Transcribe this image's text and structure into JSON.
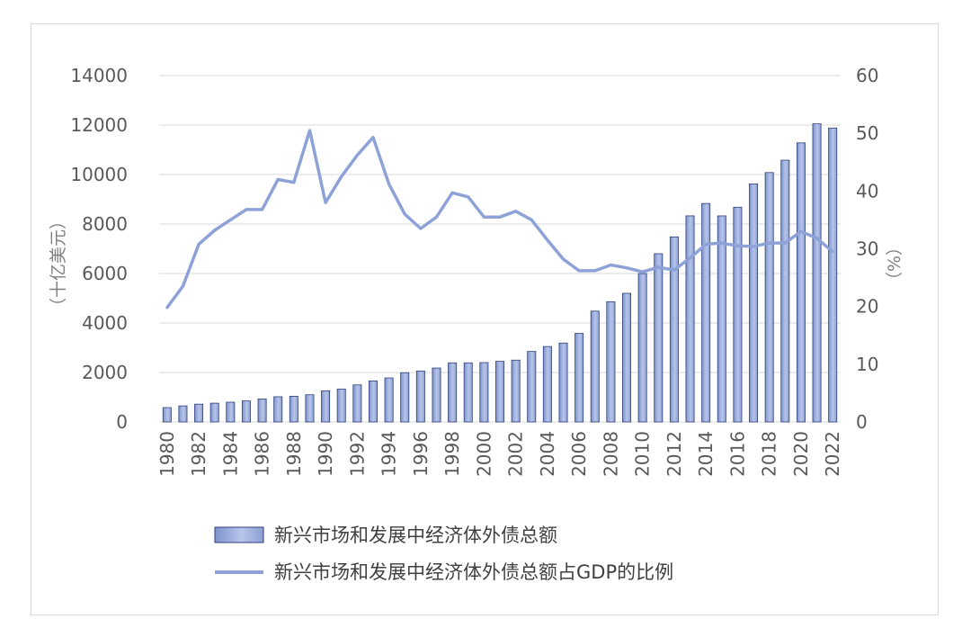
{
  "chart_data": {
    "type": "bar+line",
    "title": "",
    "x": [
      1980,
      1981,
      1982,
      1983,
      1984,
      1985,
      1986,
      1987,
      1988,
      1989,
      1990,
      1991,
      1992,
      1993,
      1994,
      1995,
      1996,
      1997,
      1998,
      1999,
      2000,
      2001,
      2002,
      2003,
      2004,
      2005,
      2006,
      2007,
      2008,
      2009,
      2010,
      2011,
      2012,
      2013,
      2014,
      2015,
      2016,
      2017,
      2018,
      2019,
      2020,
      2021,
      2022
    ],
    "x_tick_labels": [
      "1980",
      "1982",
      "1984",
      "1986",
      "1988",
      "1990",
      "1992",
      "1994",
      "1996",
      "1998",
      "2000",
      "2002",
      "2004",
      "2006",
      "2008",
      "2010",
      "2012",
      "2014",
      "2016",
      "2018",
      "2020",
      "2022"
    ],
    "left_axis": {
      "label": "（十亿美元）",
      "ylim": [
        0,
        14000
      ],
      "ticks": [
        "0",
        "2000",
        "4000",
        "6000",
        "8000",
        "10000",
        "12000",
        "14000"
      ]
    },
    "right_axis": {
      "label": "（%）",
      "ylim": [
        0,
        60
      ],
      "ticks": [
        "0",
        "10",
        "20",
        "30",
        "40",
        "50",
        "60"
      ]
    },
    "grid": true,
    "legend_position": "bottom",
    "series": [
      {
        "name": "新兴市场和发展中经济体外债总额",
        "type": "bar",
        "axis": "left",
        "values": [
          580,
          650,
          720,
          760,
          800,
          850,
          930,
          1020,
          1040,
          1100,
          1260,
          1330,
          1500,
          1660,
          1780,
          1990,
          2060,
          2180,
          2390,
          2390,
          2400,
          2450,
          2500,
          2850,
          3050,
          3190,
          3580,
          4480,
          4860,
          5200,
          6000,
          6800,
          7480,
          8330,
          8830,
          8330,
          8680,
          9620,
          10080,
          10580,
          11280,
          12050,
          11880
        ]
      },
      {
        "name": "新兴市场和发展中经济体外债总额占GDP的比例",
        "type": "line",
        "axis": "right",
        "values": [
          19.8,
          23.5,
          30.8,
          33.2,
          35.0,
          36.8,
          36.8,
          42.0,
          41.5,
          50.5,
          38.0,
          42.5,
          46.2,
          49.3,
          41.2,
          36.0,
          33.5,
          35.5,
          39.7,
          39.0,
          35.5,
          35.5,
          36.5,
          35.0,
          31.5,
          28.2,
          26.2,
          26.2,
          27.2,
          26.7,
          26.0,
          26.8,
          26.3,
          28.4,
          30.8,
          31.0,
          30.5,
          30.4,
          31.0,
          31.0,
          33.0,
          31.8,
          29.5
        ]
      }
    ],
    "colors": {
      "bar_fill": "#8b9fd1",
      "bar_fill_light": "#b3c1e6",
      "bar_stroke": "#2f3f7a",
      "line": "#8fa2d8",
      "grid": "#d9d9d9",
      "tick_text": "#595959"
    }
  }
}
